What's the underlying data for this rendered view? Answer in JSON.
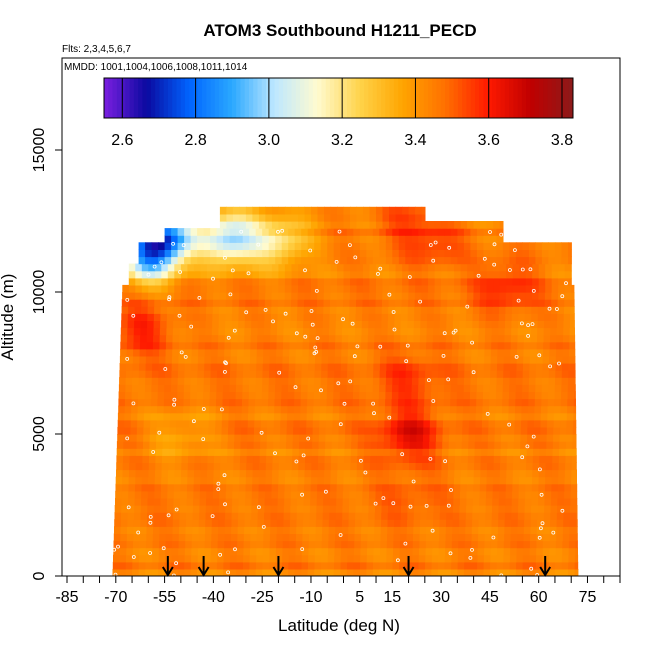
{
  "chart_data": {
    "type": "heatmap",
    "title": "ATOM3 Southbound H1211_PECD",
    "flights_label": "Flts: 2,3,4,5,6,7",
    "mmdd_label": "MMDD: 1001,1004,1006,1008,1011,1014",
    "xlabel": "Latitude (deg N)",
    "ylabel": "Altitude (m)",
    "xlim": [
      -85,
      85
    ],
    "ylim": [
      0,
      17500
    ],
    "x_ticks": [
      -85,
      -70,
      -55,
      -40,
      -25,
      -10,
      5,
      15,
      30,
      45,
      60,
      75
    ],
    "x_tick_labels": [
      "-85",
      "-70",
      "-55",
      "-40",
      "-25",
      "-10",
      "5",
      "15",
      "30",
      "45",
      "60",
      "75"
    ],
    "y_ticks": [
      0,
      5000,
      10000,
      15000
    ],
    "y_tick_labels": [
      "0",
      "5000",
      "10000",
      "15000"
    ],
    "colorbar": {
      "range": [
        2.55,
        3.83
      ],
      "ticks": [
        2.6,
        2.8,
        3.0,
        3.2,
        3.4,
        3.6,
        3.8
      ],
      "tick_labels": [
        "2.6",
        "2.8",
        "3.0",
        "3.2",
        "3.4",
        "3.6",
        "3.8"
      ],
      "divisions": [
        2.6,
        2.8,
        3.0,
        3.2,
        3.4,
        3.6,
        3.8
      ],
      "colors": [
        "#7b1fe0",
        "#0a0aa0",
        "#0064ff",
        "#2aa8ff",
        "#bde7ff",
        "#fffbd0",
        "#ffd34a",
        "#ffa500",
        "#ff7000",
        "#ff1a00",
        "#c00000",
        "#8c1a1a"
      ]
    },
    "grid": false,
    "data_extent": {
      "lat_range": [
        -71,
        72
      ],
      "alt_range": [
        0,
        12900
      ],
      "typical_value": 3.45
    },
    "features": [
      {
        "lat": -35,
        "alt": 11900,
        "value": 3.0
      },
      {
        "lat": -55,
        "alt": 12000,
        "value": 2.85
      },
      {
        "lat": -60,
        "alt": 11200,
        "value": 3.0
      },
      {
        "lat": -20,
        "alt": 11800,
        "value": 3.2
      },
      {
        "lat": 20,
        "alt": 12600,
        "value": 3.55
      },
      {
        "lat": 28,
        "alt": 11700,
        "value": 3.55
      },
      {
        "lat": 50,
        "alt": 10200,
        "value": 3.58
      },
      {
        "lat": -62,
        "alt": 8700,
        "value": 3.6
      },
      {
        "lat": 20,
        "alt": 5000,
        "value": 3.65
      },
      {
        "lat": 20,
        "alt": 7000,
        "value": 3.55
      },
      {
        "lat": 20,
        "alt": 2800,
        "value": 3.5
      },
      {
        "lat": -50,
        "alt": 5000,
        "value": 3.35
      }
    ],
    "profile_markers_lat": [
      -54,
      -43,
      -20,
      20,
      62
    ]
  }
}
